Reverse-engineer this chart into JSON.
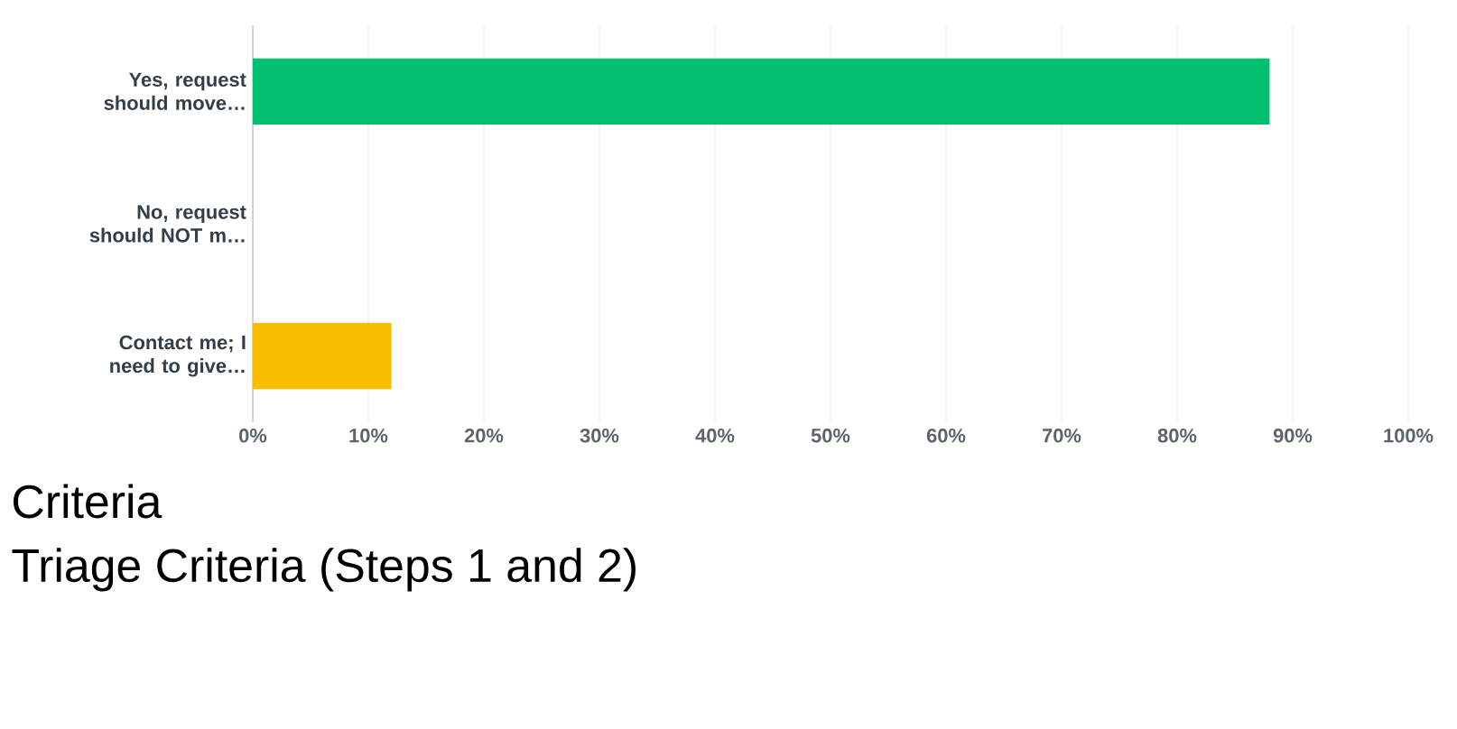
{
  "chart_data": {
    "type": "bar",
    "orientation": "horizontal",
    "categories": [
      "Yes, request should move…",
      "No, request should NOT m…",
      "Contact me; I need to give…"
    ],
    "values": [
      88,
      0,
      12
    ],
    "colors": [
      "#00bf6f",
      "#00bf6f",
      "#f9be00"
    ],
    "xlim": [
      0,
      100
    ],
    "xticks": [
      {
        "value": 0,
        "label": "0%"
      },
      {
        "value": 10,
        "label": "10%"
      },
      {
        "value": 20,
        "label": "20%"
      },
      {
        "value": 30,
        "label": "30%"
      },
      {
        "value": 40,
        "label": "40%"
      },
      {
        "value": 50,
        "label": "50%"
      },
      {
        "value": 60,
        "label": "60%"
      },
      {
        "value": 70,
        "label": "70%"
      },
      {
        "value": 80,
        "label": "80%"
      },
      {
        "value": 90,
        "label": "90%"
      },
      {
        "value": 100,
        "label": "100%"
      }
    ],
    "grid": "x",
    "annotations": [
      "Criteria",
      "Triage Criteria (Steps 1 and 2)"
    ]
  }
}
